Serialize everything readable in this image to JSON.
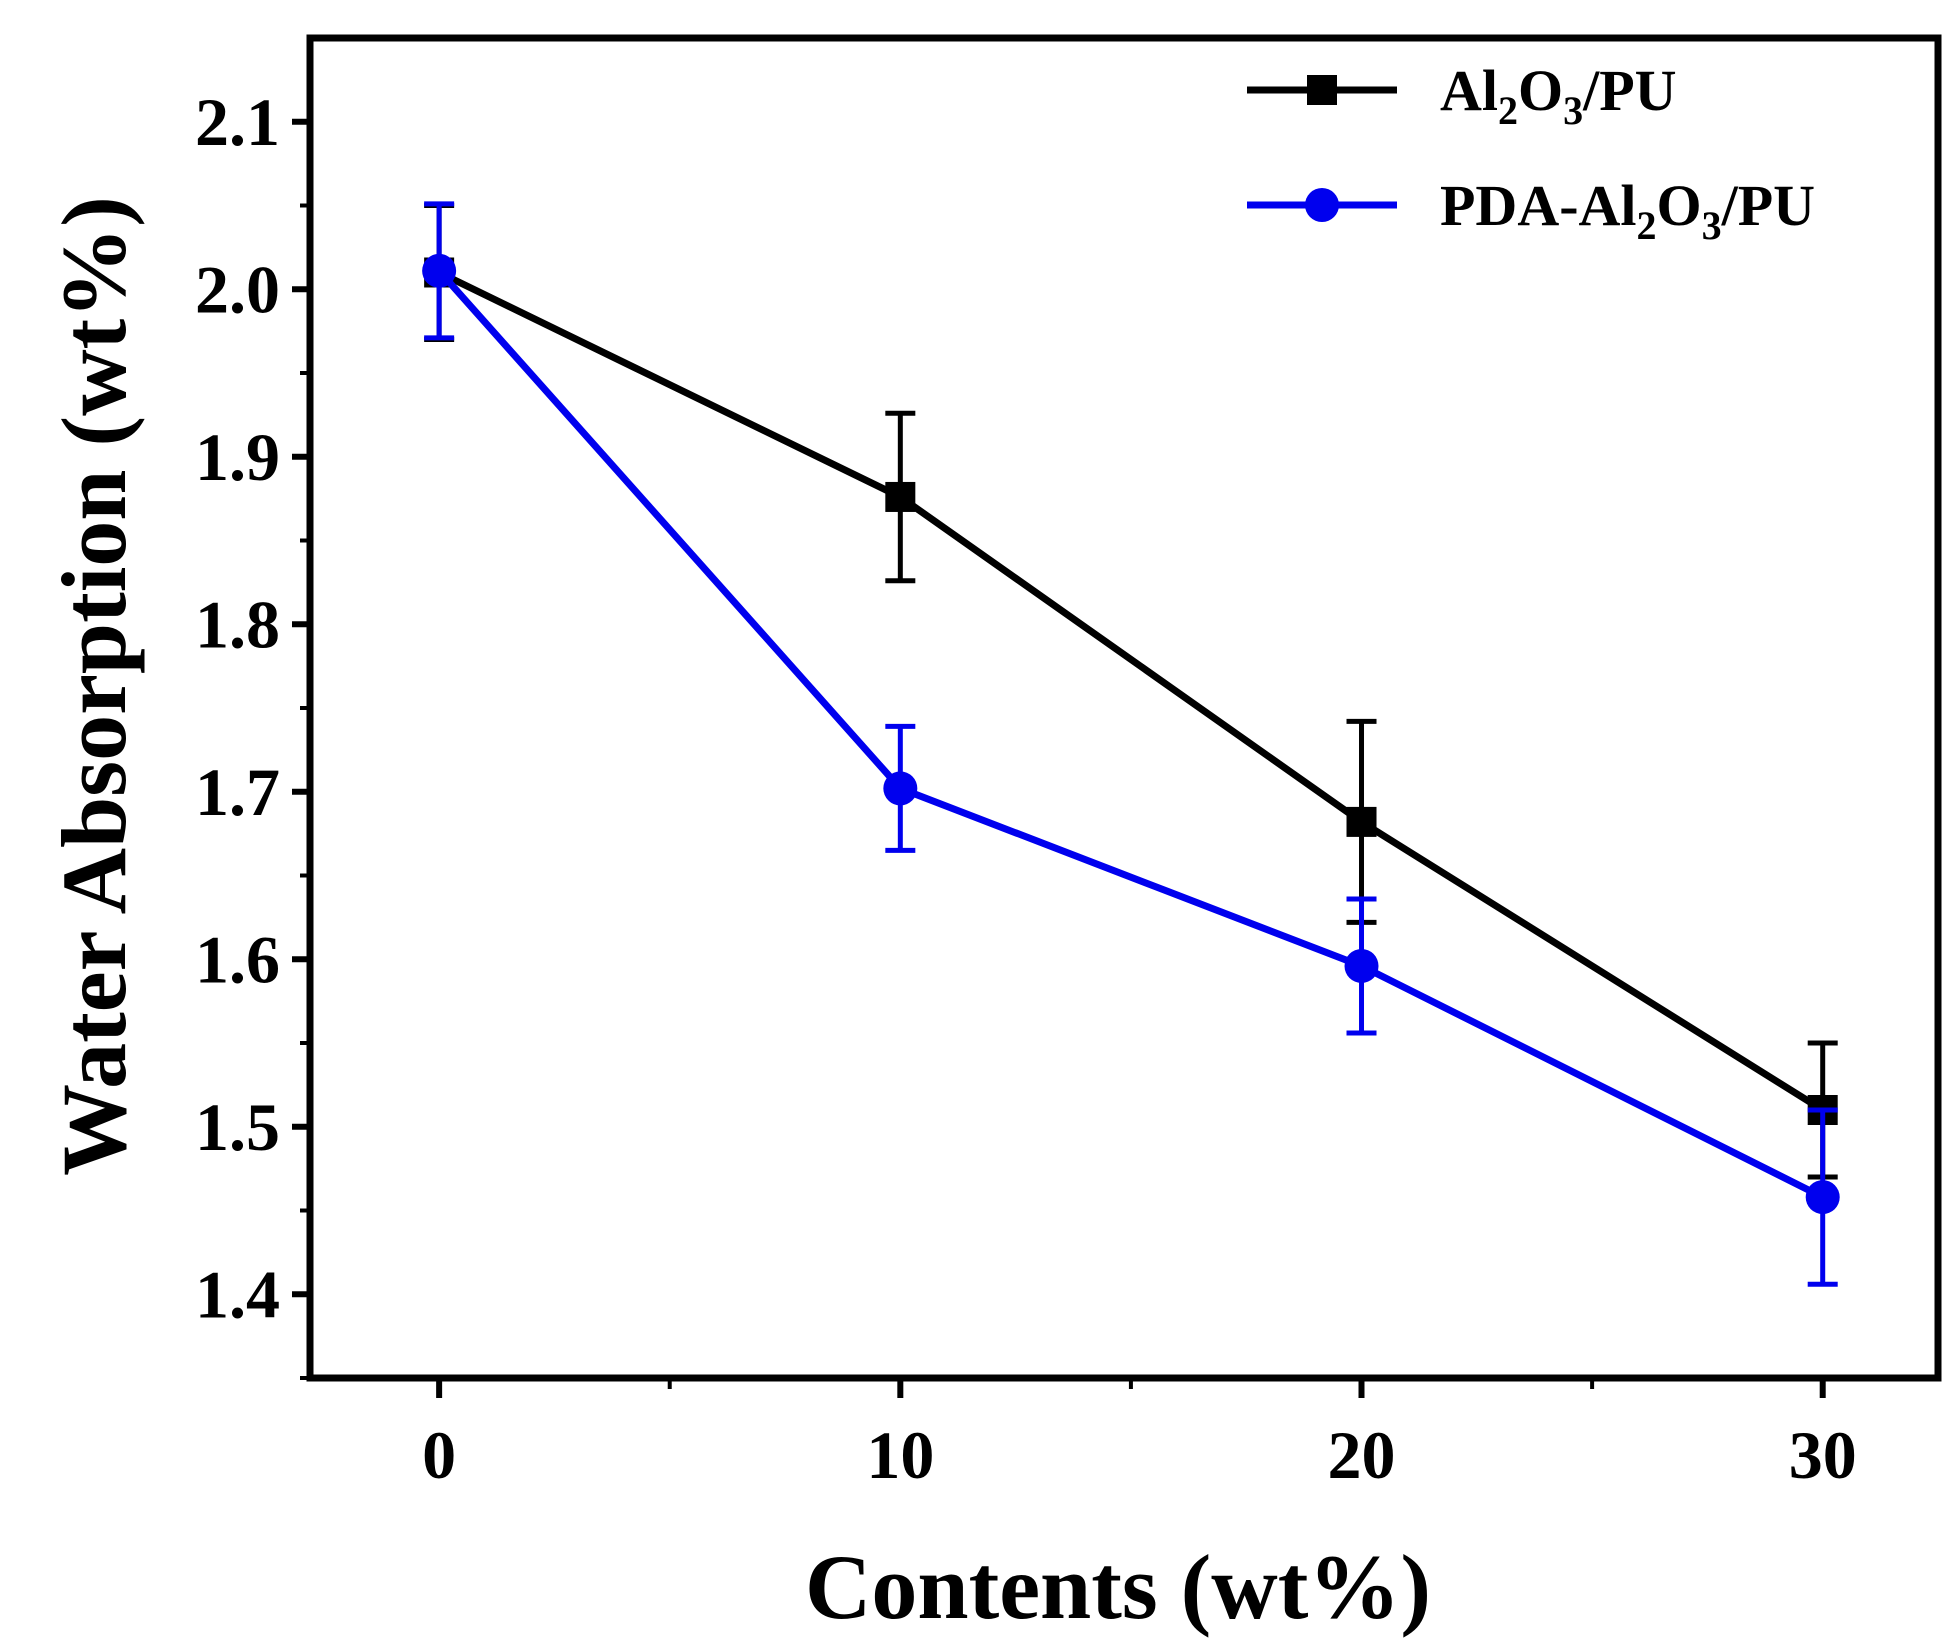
{
  "chart_data": {
    "type": "line",
    "title": "",
    "xlabel": "Contents (wt%)",
    "ylabel": "Water Absorption (wt%)",
    "x": [
      0,
      10,
      20,
      30
    ],
    "x_ticks": [
      "0",
      "10",
      "20",
      "30"
    ],
    "xlim": [
      -2.8,
      32.5
    ],
    "ylim": [
      1.35,
      2.15
    ],
    "y_ticks": [
      "1.4",
      "1.5",
      "1.6",
      "1.7",
      "1.8",
      "1.9",
      "2.0",
      "2.1"
    ],
    "grid": false,
    "legend_position": "top-right",
    "series": [
      {
        "name": "Al2O3/PU",
        "label_parts": [
          "Al",
          "2",
          "O",
          "3",
          "/PU"
        ],
        "color": "#000000",
        "marker": "square",
        "values": [
          2.01,
          1.876,
          1.682,
          1.51
        ],
        "errors": [
          0.04,
          0.05,
          0.06,
          0.04
        ]
      },
      {
        "name": "PDA-Al2O3/PU",
        "label_parts": [
          "PDA-Al",
          "2",
          "O",
          "3",
          "/PU"
        ],
        "color": "#0000ee",
        "marker": "circle",
        "values": [
          2.011,
          1.702,
          1.596,
          1.458
        ],
        "errors": [
          0.04,
          0.037,
          0.04,
          0.052
        ]
      }
    ]
  }
}
